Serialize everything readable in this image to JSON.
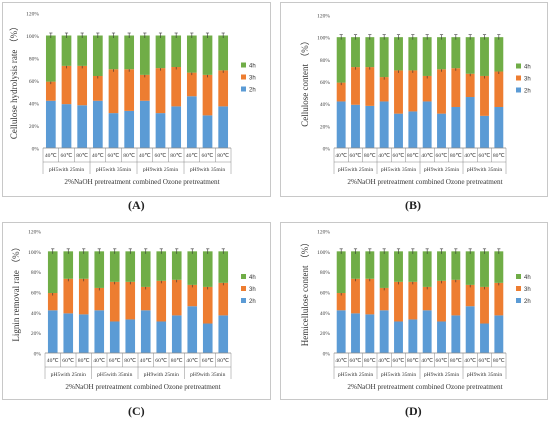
{
  "colors": {
    "h2": "#5b9bd5",
    "h3": "#ed7d31",
    "h4": "#70ad47",
    "axis": "#888888",
    "grid": "#e6e6e6"
  },
  "chart_data": [
    {
      "type": "bar",
      "stacked": true,
      "panel_label": "(A)",
      "ylabel": "Cellulose hydrolysis rate （%）",
      "xlabel": "2%NaOH pretreatment combined Ozone pretreatment",
      "ylim": [
        0,
        120
      ],
      "yticks": [
        "0%",
        "20%",
        "40%",
        "60%",
        "80%",
        "100%",
        "120%"
      ],
      "categories": [
        "40℃",
        "60℃",
        "80℃",
        "40℃",
        "60℃",
        "80℃",
        "40℃",
        "60℃",
        "80℃",
        "40℃",
        "60℃",
        "80℃"
      ],
      "groups": [
        "pH5with 25min",
        "pH5with 35min",
        "pH9with 25min",
        "pH9with 35min"
      ],
      "series": [
        {
          "name": "2h",
          "values": [
            42,
            39,
            38,
            42,
            31,
            33,
            42,
            31,
            37,
            46,
            29,
            37
          ]
        },
        {
          "name": "3h",
          "values": [
            17,
            34,
            35,
            22,
            39,
            37,
            23,
            40,
            35,
            21,
            36,
            32
          ]
        },
        {
          "name": "4h",
          "values": [
            41,
            27,
            27,
            36,
            30,
            30,
            35,
            29,
            28,
            33,
            35,
            31
          ]
        }
      ],
      "legend": "right"
    },
    {
      "type": "bar",
      "stacked": true,
      "panel_label": "(B)",
      "ylabel": "Cellulose content （%）",
      "xlabel": "2%NaOH pretreatment combined Ozone pretreatment",
      "ylim": [
        0,
        120
      ],
      "yticks": [
        "0%",
        "20%",
        "40%",
        "60%",
        "80%",
        "100%",
        "120%"
      ],
      "categories": [
        "40℃",
        "60℃",
        "80℃",
        "40℃",
        "60℃",
        "80℃",
        "40℃",
        "60℃",
        "80℃",
        "40℃",
        "60℃",
        "80℃"
      ],
      "groups": [
        "pH5with 25min",
        "pH5with 35min",
        "pH9with 25min",
        "pH9with 35min"
      ],
      "series": [
        {
          "name": "2h",
          "values": [
            42,
            39,
            38,
            42,
            31,
            33,
            42,
            31,
            37,
            46,
            29,
            37
          ]
        },
        {
          "name": "3h",
          "values": [
            17,
            34,
            35,
            22,
            39,
            37,
            23,
            40,
            35,
            21,
            36,
            32
          ]
        },
        {
          "name": "4h",
          "values": [
            41,
            27,
            27,
            36,
            30,
            30,
            35,
            29,
            28,
            33,
            35,
            31
          ]
        }
      ],
      "legend": "right"
    },
    {
      "type": "bar",
      "stacked": true,
      "panel_label": "(C)",
      "ylabel": "Lignin removal rate （%）",
      "xlabel": "2%NaOH pretreatment combined Ozone pretreatment",
      "ylim": [
        0,
        120
      ],
      "yticks": [
        "0%",
        "20%",
        "40%",
        "60%",
        "80%",
        "100%",
        "120%"
      ],
      "categories": [
        "40℃",
        "60℃",
        "80℃",
        "40℃",
        "60℃",
        "80℃",
        "40℃",
        "60℃",
        "80℃",
        "40℃",
        "60℃",
        "80℃"
      ],
      "groups": [
        "pH5with 25min",
        "pH5with 35min",
        "pH9with 25min",
        "pH9with 35min"
      ],
      "series": [
        {
          "name": "2h",
          "values": [
            42,
            39,
            38,
            42,
            31,
            33,
            42,
            31,
            37,
            46,
            29,
            37
          ]
        },
        {
          "name": "3h",
          "values": [
            17,
            34,
            35,
            22,
            39,
            37,
            23,
            40,
            35,
            21,
            36,
            32
          ]
        },
        {
          "name": "4h",
          "values": [
            41,
            27,
            27,
            36,
            30,
            30,
            35,
            29,
            28,
            33,
            35,
            31
          ]
        }
      ],
      "legend": "right"
    },
    {
      "type": "bar",
      "stacked": true,
      "panel_label": "(D)",
      "ylabel": "Hemicellulose content （%）",
      "xlabel": "2%NaOH pretreatment combined Ozone pretreatment",
      "ylim": [
        0,
        120
      ],
      "yticks": [
        "0%",
        "20%",
        "40%",
        "60%",
        "80%",
        "100%",
        "120%"
      ],
      "categories": [
        "40℃",
        "60℃",
        "80℃",
        "40℃",
        "60℃",
        "80℃",
        "40℃",
        "60℃",
        "80℃",
        "40℃",
        "60℃",
        "80℃"
      ],
      "groups": [
        "pH5with 25min",
        "pH5with 35min",
        "pH9with 25min",
        "pH9with 35min"
      ],
      "series": [
        {
          "name": "2h",
          "values": [
            42,
            39,
            38,
            42,
            31,
            33,
            42,
            31,
            37,
            46,
            29,
            37
          ]
        },
        {
          "name": "3h",
          "values": [
            17,
            34,
            35,
            22,
            39,
            37,
            23,
            40,
            35,
            21,
            36,
            32
          ]
        },
        {
          "name": "4h",
          "values": [
            41,
            27,
            27,
            36,
            30,
            30,
            35,
            29,
            28,
            33,
            35,
            31
          ]
        }
      ],
      "legend": "right"
    }
  ]
}
